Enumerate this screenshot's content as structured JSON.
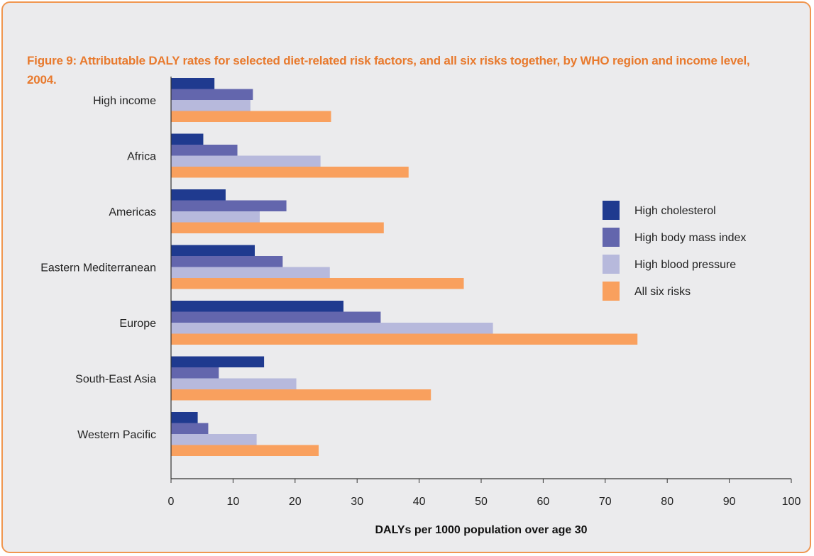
{
  "title": "Figure 9: Attributable DALY rates for selected diet-related risk factors, and all six risks together, by WHO region and income level, 2004.",
  "chart_data": {
    "type": "bar",
    "orientation": "horizontal",
    "title": "Figure 9: Attributable DALY rates for selected diet-related risk factors, and all six risks together, by WHO region and income level, 2004.",
    "xlabel": "DALYs per 1000 population over age 30",
    "ylabel": "",
    "xlim": [
      0,
      100
    ],
    "xticks": [
      0,
      10,
      20,
      30,
      40,
      50,
      60,
      70,
      80,
      90,
      100
    ],
    "grid": false,
    "legend_position": "right",
    "categories": [
      "High income",
      "Africa",
      "Americas",
      "Eastern Mediterranean",
      "Europe",
      "South-East Asia",
      "Western Pacific"
    ],
    "series": [
      {
        "name": "High cholesterol",
        "color": "#1f3a8f",
        "values": [
          7,
          5.2,
          8.8,
          13.5,
          27.8,
          15,
          4.3
        ]
      },
      {
        "name": "High body mass index",
        "color": "#6366ad",
        "values": [
          13.2,
          10.7,
          18.6,
          18,
          33.8,
          7.7,
          6
        ]
      },
      {
        "name": "High blood pressure",
        "color": "#b7b9dc",
        "values": [
          12.8,
          24.1,
          14.3,
          25.6,
          51.9,
          20.2,
          13.8
        ]
      },
      {
        "name": "All six risks",
        "color": "#f9a05e",
        "values": [
          25.8,
          38.3,
          34.3,
          47.2,
          75.2,
          41.9,
          23.8
        ]
      }
    ]
  }
}
